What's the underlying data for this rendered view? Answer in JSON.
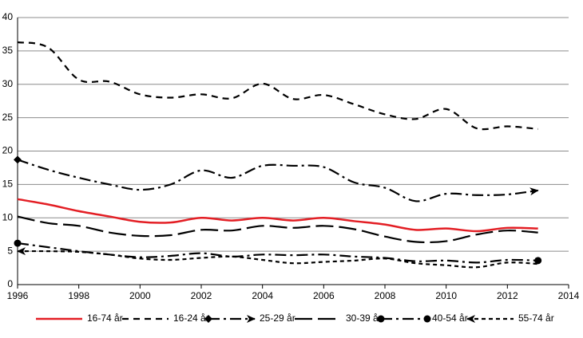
{
  "chart_data": {
    "type": "line",
    "x": [
      1996,
      1997,
      1998,
      1999,
      2000,
      2001,
      2002,
      2003,
      2004,
      2005,
      2006,
      2007,
      2008,
      2009,
      2010,
      2011,
      2012,
      2013
    ],
    "xlim": [
      1996,
      2014
    ],
    "xticks": [
      1996,
      1998,
      2000,
      2002,
      2004,
      2006,
      2008,
      2010,
      2012,
      2014
    ],
    "ylim": [
      0,
      40
    ],
    "yticks": [
      0,
      5,
      10,
      15,
      20,
      25,
      30,
      35,
      40
    ],
    "grid": true,
    "series": [
      {
        "name": "16-74 år",
        "color": "#e31e24",
        "values": [
          12.8,
          12.0,
          11.0,
          10.2,
          9.4,
          9.3,
          10.0,
          9.6,
          10.0,
          9.6,
          10.0,
          9.5,
          9.0,
          8.2,
          8.4,
          8.0,
          8.5,
          8.4
        ]
      },
      {
        "name": "16-24 år",
        "color": "#000000",
        "values": [
          36.3,
          35.5,
          30.7,
          30.4,
          28.5,
          28.0,
          28.5,
          27.9,
          30.1,
          27.8,
          28.4,
          27.0,
          25.5,
          24.8,
          26.3,
          23.4,
          23.7,
          23.3
        ]
      },
      {
        "name": "25-29 år",
        "color": "#000000",
        "values": [
          18.7,
          17.2,
          16.0,
          15.0,
          14.2,
          15.0,
          17.1,
          16.0,
          17.8,
          17.8,
          17.6,
          15.3,
          14.5,
          12.5,
          13.6,
          13.4,
          13.5,
          14.1
        ]
      },
      {
        "name": "30-39 år",
        "color": "#000000",
        "values": [
          10.2,
          9.2,
          8.8,
          7.8,
          7.3,
          7.4,
          8.2,
          8.1,
          8.8,
          8.5,
          8.8,
          8.3,
          7.2,
          6.4,
          6.5,
          7.5,
          8.1,
          7.8
        ]
      },
      {
        "name": "40-54 år",
        "color": "#000000",
        "values": [
          6.2,
          5.6,
          5.0,
          4.5,
          4.1,
          4.3,
          4.7,
          4.2,
          4.5,
          4.4,
          4.5,
          4.2,
          4.0,
          3.5,
          3.6,
          3.3,
          3.7,
          3.6
        ]
      },
      {
        "name": "55-74 år",
        "color": "#000000",
        "values": [
          5.0,
          5.0,
          4.9,
          4.5,
          3.9,
          3.7,
          4.0,
          4.2,
          3.7,
          3.2,
          3.4,
          3.6,
          3.9,
          3.2,
          2.9,
          2.6,
          3.3,
          3.1
        ]
      }
    ]
  }
}
